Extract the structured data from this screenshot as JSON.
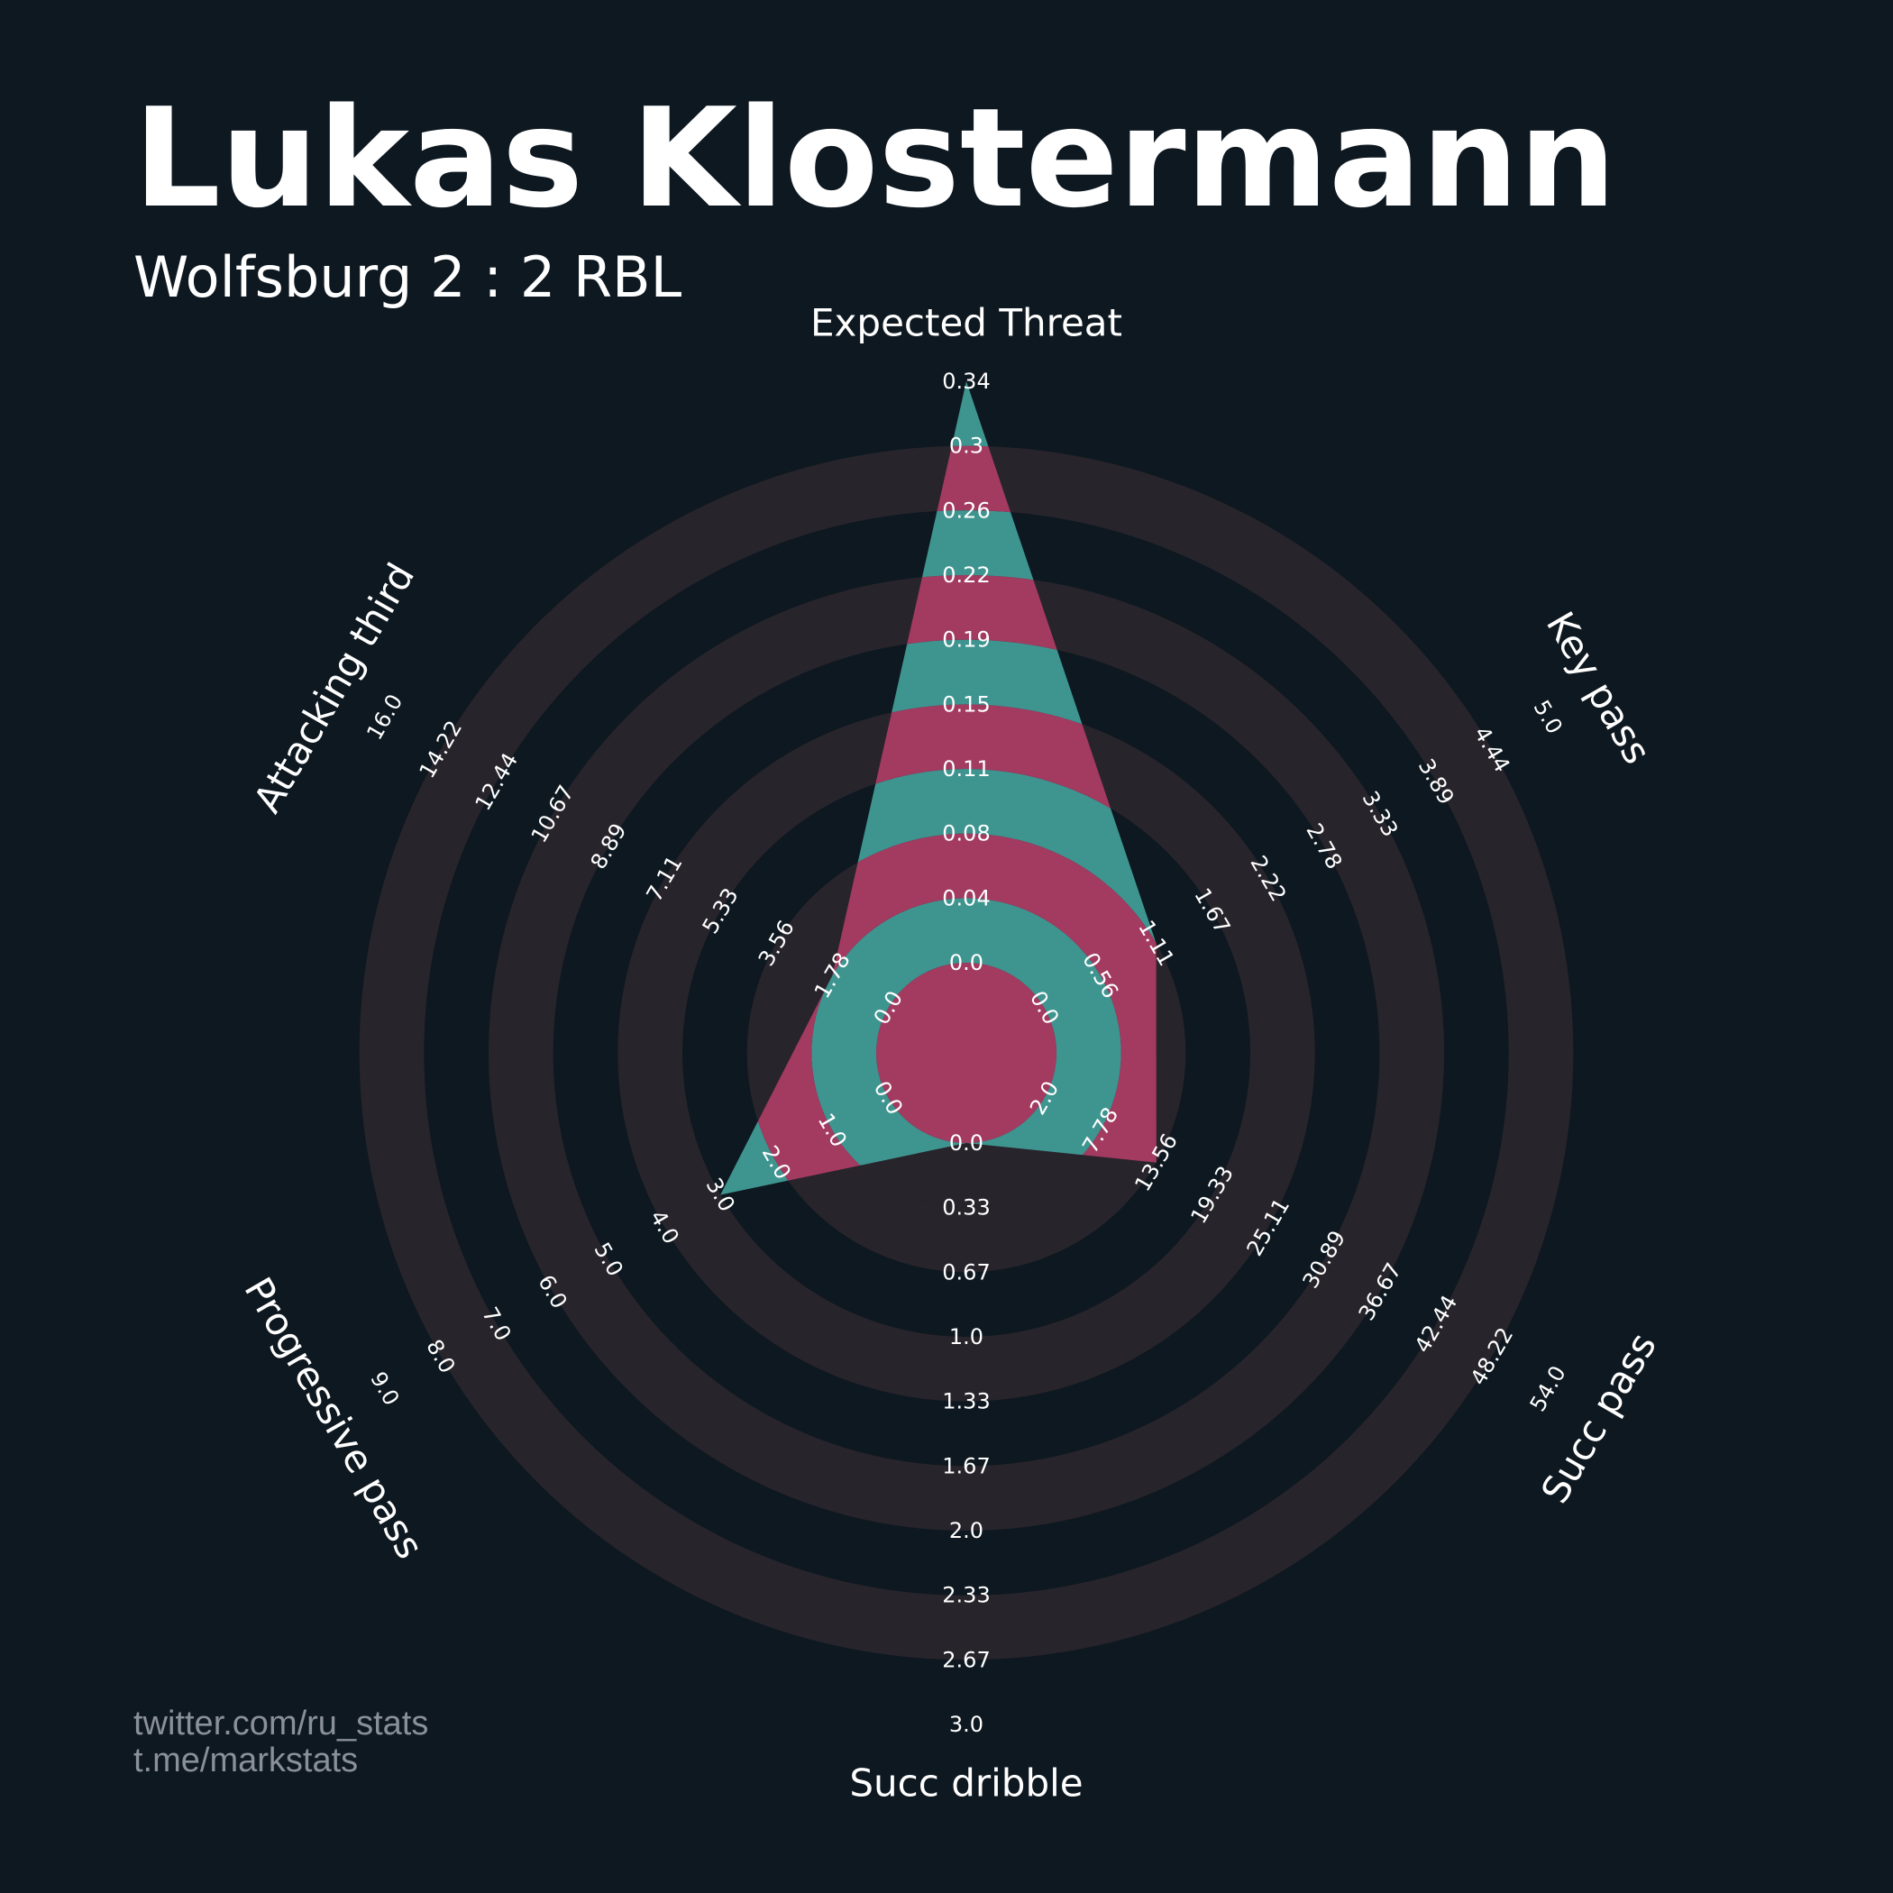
{
  "header": {
    "title": "Lukas Klostermann",
    "subtitle": "Wolfsburg 2 : 2 RBL"
  },
  "credits": {
    "line1": "twitter.com/ru_stats",
    "line2": "t.me/markstats"
  },
  "colors": {
    "background": "#0e1820",
    "ring": "#28242b",
    "polygon_a": "#3e9590",
    "polygon_b": "#a33a60"
  },
  "chart_data": {
    "type": "radar",
    "title": "Lukas Klostermann",
    "subtitle": "Wolfsburg 2 : 2 RBL",
    "axes": [
      {
        "name": "Expected Threat",
        "value": 0.34,
        "ticks": [
          "0.0",
          "0.04",
          "0.08",
          "0.11",
          "0.15",
          "0.19",
          "0.22",
          "0.26",
          "0.3",
          "0.34"
        ]
      },
      {
        "name": "Key pass",
        "value": 1.11,
        "ticks": [
          "0.0",
          "0.56",
          "1.11",
          "1.67",
          "2.22",
          "2.78",
          "3.33",
          "3.89",
          "4.44",
          "5.0"
        ]
      },
      {
        "name": "Succ pass",
        "value": 13.56,
        "ticks": [
          "2.0",
          "7.78",
          "13.56",
          "19.33",
          "25.11",
          "30.89",
          "36.67",
          "42.44",
          "48.22",
          "54.0"
        ]
      },
      {
        "name": "Succ dribble",
        "value": 0.0,
        "ticks": [
          "0.0",
          "0.33",
          "0.67",
          "1.0",
          "1.33",
          "1.67",
          "2.0",
          "2.33",
          "2.67",
          "3.0"
        ]
      },
      {
        "name": "Progressive pass",
        "value": 3.0,
        "ticks": [
          "0.0",
          "1.0",
          "2.0",
          "3.0",
          "4.0",
          "5.0",
          "6.0",
          "7.0",
          "8.0",
          "9.0"
        ]
      },
      {
        "name": "Attacking third",
        "value": 1.78,
        "ticks": [
          "0.0",
          "1.78",
          "3.56",
          "5.33",
          "7.11",
          "8.89",
          "10.67",
          "12.44",
          "14.22",
          "16.0"
        ]
      }
    ]
  }
}
